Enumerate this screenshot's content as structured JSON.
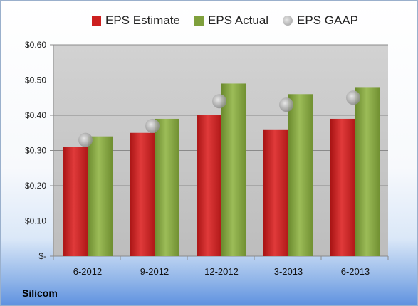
{
  "chart_data": {
    "type": "bar",
    "categories": [
      "6-2012",
      "9-2012",
      "12-2012",
      "3-2013",
      "6-2013"
    ],
    "series": [
      {
        "name": "EPS Estimate",
        "type": "bar",
        "values": [
          0.31,
          0.35,
          0.4,
          0.36,
          0.39
        ]
      },
      {
        "name": "EPS Actual",
        "type": "bar",
        "values": [
          0.34,
          0.39,
          0.49,
          0.46,
          0.48
        ]
      },
      {
        "name": "EPS GAAP",
        "type": "marker",
        "values": [
          0.33,
          0.37,
          0.44,
          0.43,
          0.45
        ]
      }
    ],
    "yticks": [
      0,
      0.1,
      0.2,
      0.3,
      0.4,
      0.5,
      0.6
    ],
    "ytick_labels": [
      "$-",
      "$0.10",
      "$0.20",
      "$0.30",
      "$0.40",
      "$0.50",
      "$0.60"
    ],
    "ylim": [
      0,
      0.6
    ],
    "grid": true,
    "legend_position": "top",
    "colors": {
      "estimate": "#cc1f1f",
      "actual": "#7fa03c",
      "gaap": "#b8b8b8",
      "plot_bg": "#c9c9c9"
    }
  },
  "footer": {
    "company": "Silicom"
  }
}
